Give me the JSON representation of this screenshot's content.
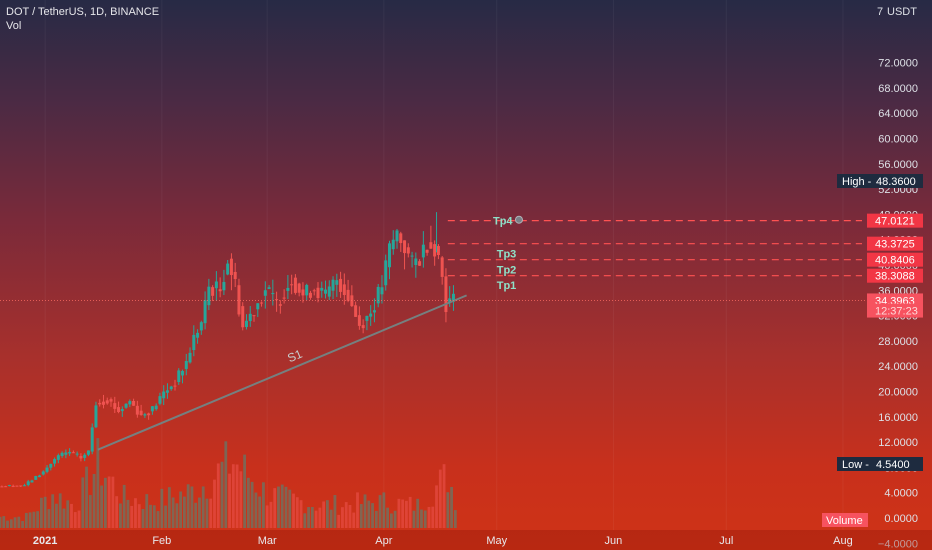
{
  "header": {
    "symbol": "DOT / TetherUS, 1D, BINANCE",
    "indicator": "Vol"
  },
  "scale_currency": "USDT",
  "colors": {
    "up": "#26a69a",
    "down": "#ef5350",
    "level_line": "#ff5252",
    "trend_line": "#758080",
    "label_bg_red": "#f23645",
    "label_bg_dark": "#1e2b3f"
  },
  "chart_data": {
    "type": "candlestick",
    "title": "DOT / TetherUS, 1D, BINANCE",
    "ylim": [
      -6,
      80
    ],
    "y_ticks": [
      {
        "value": -4,
        "label": "−4.0000"
      },
      {
        "value": 0,
        "label": "0.0000"
      },
      {
        "value": 4,
        "label": "4.0000"
      },
      {
        "value": 8,
        "label": "8.0000"
      },
      {
        "value": 12,
        "label": "12.0000"
      },
      {
        "value": 16,
        "label": "16.0000"
      },
      {
        "value": 20,
        "label": "20.0000"
      },
      {
        "value": 24,
        "label": "24.0000"
      },
      {
        "value": 28,
        "label": "28.0000"
      },
      {
        "value": 32,
        "label": "32.0000"
      },
      {
        "value": 36,
        "label": "36.0000"
      },
      {
        "value": 40,
        "label": "40.0000"
      },
      {
        "value": 44,
        "label": "44.0000"
      },
      {
        "value": 48,
        "label": "48.0000"
      },
      {
        "value": 52,
        "label": "52.0000"
      },
      {
        "value": 56,
        "label": "56.0000"
      },
      {
        "value": 60,
        "label": "60.0000"
      },
      {
        "value": 64,
        "label": "64.0000"
      },
      {
        "value": 68,
        "label": "68.0000"
      },
      {
        "value": 72,
        "label": "72.0000"
      }
    ],
    "top_tick_label": "7",
    "x_ticks": [
      {
        "date": "2021-01-01",
        "label": "2021",
        "bold": true
      },
      {
        "date": "2021-02-01",
        "label": "Feb"
      },
      {
        "date": "2021-03-01",
        "label": "Mar"
      },
      {
        "date": "2021-04-01",
        "label": "Apr"
      },
      {
        "date": "2021-05-01",
        "label": "May"
      },
      {
        "date": "2021-06-01",
        "label": "Jun"
      },
      {
        "date": "2021-07-01",
        "label": "Jul"
      },
      {
        "date": "2021-08-01",
        "label": "Aug"
      }
    ],
    "x_range": [
      "2020-12-20",
      "2021-08-05"
    ],
    "price_samples": [
      {
        "date": "2020-12-20",
        "close": 5.0
      },
      {
        "date": "2020-12-27",
        "close": 5.2
      },
      {
        "date": "2021-01-01",
        "close": 7.3
      },
      {
        "date": "2021-01-03",
        "close": 8.6
      },
      {
        "date": "2021-01-05",
        "close": 9.8
      },
      {
        "date": "2021-01-08",
        "close": 10.4
      },
      {
        "date": "2021-01-11",
        "close": 9.5
      },
      {
        "date": "2021-01-13",
        "close": 10.5
      },
      {
        "date": "2021-01-15",
        "close": 18.2
      },
      {
        "date": "2021-01-18",
        "close": 18.8
      },
      {
        "date": "2021-01-21",
        "close": 16.9
      },
      {
        "date": "2021-01-24",
        "close": 18.5
      },
      {
        "date": "2021-01-27",
        "close": 16.2
      },
      {
        "date": "2021-01-30",
        "close": 17.2
      },
      {
        "date": "2021-02-02",
        "close": 19.8
      },
      {
        "date": "2021-02-05",
        "close": 21.5
      },
      {
        "date": "2021-02-08",
        "close": 24.6
      },
      {
        "date": "2021-02-10",
        "close": 28.5
      },
      {
        "date": "2021-02-12",
        "close": 30.8
      },
      {
        "date": "2021-02-14",
        "close": 36.5
      },
      {
        "date": "2021-02-17",
        "close": 36.0
      },
      {
        "date": "2021-02-19",
        "close": 41.0
      },
      {
        "date": "2021-02-21",
        "close": 36.8
      },
      {
        "date": "2021-02-23",
        "close": 30.2
      },
      {
        "date": "2021-02-26",
        "close": 33.0
      },
      {
        "date": "2021-03-01",
        "close": 36.2
      },
      {
        "date": "2021-03-04",
        "close": 33.8
      },
      {
        "date": "2021-03-08",
        "close": 38.0
      },
      {
        "date": "2021-03-11",
        "close": 35.2
      },
      {
        "date": "2021-03-14",
        "close": 36.4
      },
      {
        "date": "2021-03-17",
        "close": 35.0
      },
      {
        "date": "2021-03-20",
        "close": 37.8
      },
      {
        "date": "2021-03-23",
        "close": 35.2
      },
      {
        "date": "2021-03-26",
        "close": 30.5
      },
      {
        "date": "2021-03-29",
        "close": 32.5
      },
      {
        "date": "2021-04-01",
        "close": 36.8
      },
      {
        "date": "2021-04-03",
        "close": 42.5
      },
      {
        "date": "2021-04-05",
        "close": 45.0
      },
      {
        "date": "2021-04-07",
        "close": 42.8
      },
      {
        "date": "2021-04-09",
        "close": 40.0
      },
      {
        "date": "2021-04-11",
        "close": 41.2
      },
      {
        "date": "2021-04-13",
        "close": 43.6
      },
      {
        "date": "2021-04-15",
        "close": 43.0
      },
      {
        "date": "2021-04-16",
        "close": 41.2
      },
      {
        "date": "2021-04-17",
        "close": 38.2
      },
      {
        "date": "2021-04-18",
        "close": 34.0
      },
      {
        "date": "2021-04-20",
        "close": 34.4
      }
    ],
    "volume_samples": [
      {
        "date": "2020-12-27",
        "level": 0.15
      },
      {
        "date": "2021-01-03",
        "level": 0.45
      },
      {
        "date": "2021-01-09",
        "level": 0.3
      },
      {
        "date": "2021-01-15",
        "level": 0.85
      },
      {
        "date": "2021-01-22",
        "level": 0.4
      },
      {
        "date": "2021-01-30",
        "level": 0.35
      },
      {
        "date": "2021-02-10",
        "level": 0.5
      },
      {
        "date": "2021-02-20",
        "level": 0.9
      },
      {
        "date": "2021-03-01",
        "level": 0.45
      },
      {
        "date": "2021-03-15",
        "level": 0.3
      },
      {
        "date": "2021-04-01",
        "level": 0.35
      },
      {
        "date": "2021-04-10",
        "level": 0.3
      },
      {
        "date": "2021-04-18",
        "level": 0.7
      },
      {
        "date": "2021-04-20",
        "level": 0.4
      }
    ],
    "trend_line": {
      "label": "S1",
      "start": {
        "date": "2021-01-15",
        "price": 10.8
      },
      "end": {
        "date": "2021-04-23",
        "price": 35.2
      }
    },
    "levels": [
      {
        "name": "Tp4",
        "price": 47.0121,
        "axis_label": "47.0121",
        "from": "2021-04-18"
      },
      {
        "name": "",
        "price": 43.3725,
        "axis_label": "43.3725",
        "from": "2021-04-18"
      },
      {
        "name": "Tp3",
        "price": 40.8406,
        "axis_label": "40.8406",
        "from": "2021-04-18"
      },
      {
        "name": "Tp2",
        "price": 38.3088,
        "axis_label": "38.3088",
        "from": "2021-04-18"
      },
      {
        "name": "Tp1",
        "price": 38.3088,
        "axis_label": "",
        "from": "2021-04-18"
      }
    ],
    "level_labels": [
      {
        "text": "Tp4",
        "date": "2021-04-30",
        "price": 47.0
      },
      {
        "text": "Tp3",
        "date": "2021-05-01",
        "price": 41.8
      },
      {
        "text": "Tp2",
        "date": "2021-05-01",
        "price": 39.3
      },
      {
        "text": "Tp1",
        "date": "2021-05-01",
        "price": 36.8
      }
    ],
    "current_price": {
      "price": 34.3963,
      "label": "34.3963",
      "label2": "12:37:23"
    },
    "high": {
      "label": "High",
      "value": "48.3600",
      "price": 48.36
    },
    "low": {
      "label": "Low",
      "value": "4.5400",
      "price": 4.54
    },
    "volume_label": "Volume"
  }
}
